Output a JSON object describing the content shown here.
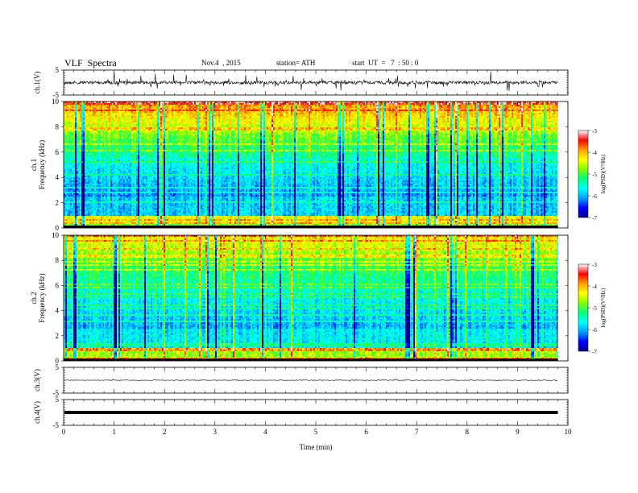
{
  "header": {
    "title": "VLF  Spectra",
    "date": "Nov.4  , 2015",
    "station": "station= ATH",
    "start": "start  UT  =   7  : 50 : 0"
  },
  "chart_data": [
    {
      "type": "line",
      "panel": "ch1-waveform",
      "ylabel": "ch.1(V)",
      "ylim": [
        -5,
        5
      ],
      "yticks": [
        "5",
        "-5"
      ],
      "xlim": [
        0,
        10
      ],
      "line_color": "#000000"
    },
    {
      "type": "heatmap",
      "panel": "ch1-spectrogram",
      "ylabel_lines": [
        "ch.1",
        "Frequency  (kHz)"
      ],
      "ylim": [
        0,
        10
      ],
      "yticks": [
        "0",
        "2",
        "4",
        "6",
        "8",
        "10"
      ],
      "xlim": [
        0,
        9.8
      ],
      "colorbar": {
        "label": "log(PSD)(V²/Hz)",
        "range": [
          -7,
          -3
        ],
        "ticks": [
          "-3",
          "-4",
          "-5",
          "-6",
          "-7"
        ],
        "colors": [
          "#000080",
          "#0000ff",
          "#00a0ff",
          "#00ffff",
          "#00ff80",
          "#80ff00",
          "#ffff00",
          "#ffa000",
          "#ff0000",
          "#ffffff"
        ]
      }
    },
    {
      "type": "heatmap",
      "panel": "ch2-spectrogram",
      "ylabel_lines": [
        "ch.2",
        "Frequency  (kHz)"
      ],
      "ylim": [
        0,
        10
      ],
      "yticks": [
        "0",
        "2",
        "4",
        "6",
        "8",
        "10"
      ],
      "xlim": [
        0,
        9.8
      ],
      "colorbar": {
        "label": "log(PSD)(V²/Hz)",
        "range": [
          -7,
          -3
        ],
        "ticks": [
          "-3",
          "-4",
          "-5",
          "-6",
          "-7"
        ],
        "colors": [
          "#000080",
          "#0000ff",
          "#00a0ff",
          "#00ffff",
          "#00ff80",
          "#80ff00",
          "#ffff00",
          "#ffa000",
          "#ff0000",
          "#ffffff"
        ]
      }
    },
    {
      "type": "line",
      "panel": "ch3-waveform",
      "ylabel": "ch.3(V)",
      "ylim": [
        -5,
        5
      ],
      "yticks": [
        "5",
        "-5"
      ],
      "xlim": [
        0,
        10
      ]
    },
    {
      "type": "line",
      "panel": "ch4-waveform",
      "ylabel": "ch.4(V)",
      "ylim": [
        -5,
        5
      ],
      "yticks": [
        "5",
        "-5"
      ],
      "xlim": [
        0,
        10
      ]
    }
  ],
  "x_axis": {
    "label": "Time  (min)",
    "range": [
      0,
      10
    ],
    "ticks": [
      "0",
      "1",
      "2",
      "3",
      "4",
      "5",
      "6",
      "7",
      "8",
      "9",
      "10"
    ]
  }
}
